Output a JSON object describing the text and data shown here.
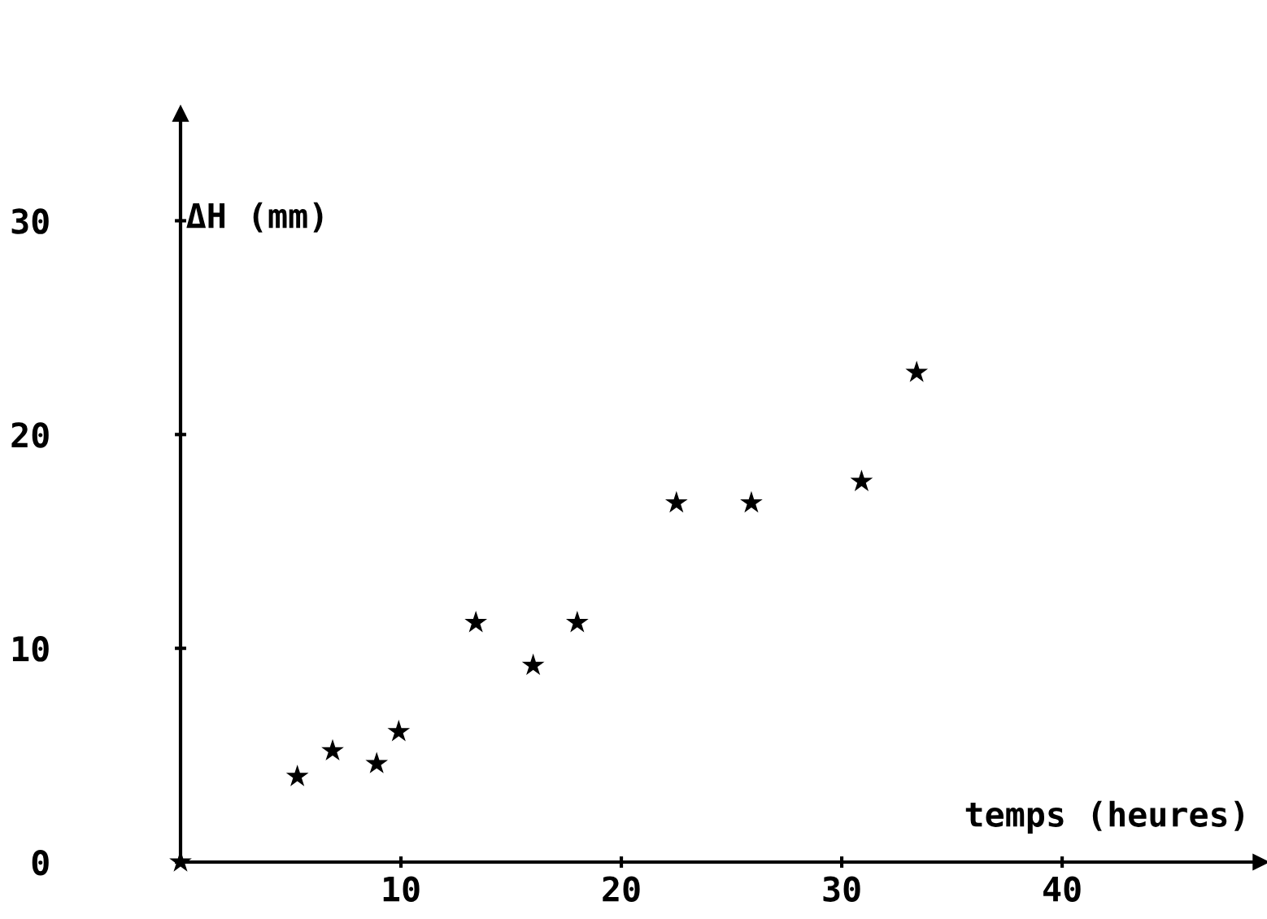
{
  "chart_data": {
    "type": "scatter",
    "xlabel": "temps (heures)",
    "ylabel": "ΔH (mm)",
    "x": [
      0,
      5.3,
      6.9,
      8.9,
      9.9,
      13.4,
      16.0,
      18.0,
      22.5,
      25.9,
      30.9,
      33.4
    ],
    "series": [
      {
        "color": "#000000",
        "values": [
          0,
          4.0,
          5.2,
          4.6,
          6.1,
          11.2,
          9.2,
          11.2,
          16.8,
          16.8,
          17.8,
          22.9
        ]
      }
    ],
    "xlim": [
      0,
      49
    ],
    "ylim": [
      0,
      35
    ],
    "xticks": [
      10,
      20,
      30,
      40
    ],
    "yticks": [
      0,
      10,
      20,
      30
    ],
    "marker": "star",
    "grid": false,
    "legend": false
  }
}
